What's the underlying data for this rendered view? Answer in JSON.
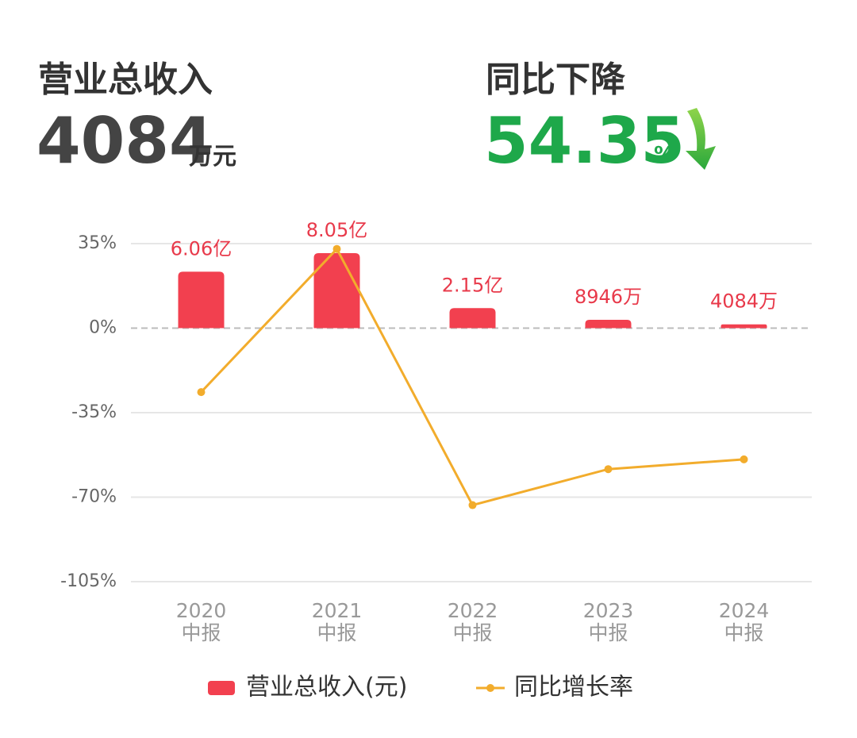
{
  "header": {
    "revenue_label": "营业总收入",
    "revenue_value": "4084",
    "revenue_unit": "万元",
    "change_label": "同比下降",
    "change_value": "54.35",
    "change_unit": "%"
  },
  "chart_data": {
    "type": "bar",
    "categories": [
      "2020\n中报",
      "2021\n中报",
      "2022\n中报",
      "2023\n中报",
      "2024\n中报"
    ],
    "series": [
      {
        "name": "营业总收入(元)",
        "type": "bar",
        "axis": "y2",
        "color": "#f2404f",
        "values": [
          606000000,
          805000000,
          215000000,
          89460000,
          40840000
        ],
        "value_labels": [
          "6.06亿",
          "8.05亿",
          "2.15亿",
          "8946万",
          "4084万"
        ]
      },
      {
        "name": "同比增长率",
        "type": "line",
        "color": "#f2ac2c",
        "values": [
          -26.5,
          32.8,
          -73.3,
          -58.4,
          -54.35
        ]
      }
    ],
    "ylim": [
      -105,
      35
    ],
    "yticks": [
      {
        "value": 35,
        "label": "35%"
      },
      {
        "value": 0,
        "label": "0%"
      },
      {
        "value": -35,
        "label": "-35%"
      },
      {
        "value": -70,
        "label": "-70%"
      },
      {
        "value": -105,
        "label": "-105%"
      }
    ],
    "y2lim": [
      -2720000000,
      907000000
    ],
    "grid": true
  }
}
